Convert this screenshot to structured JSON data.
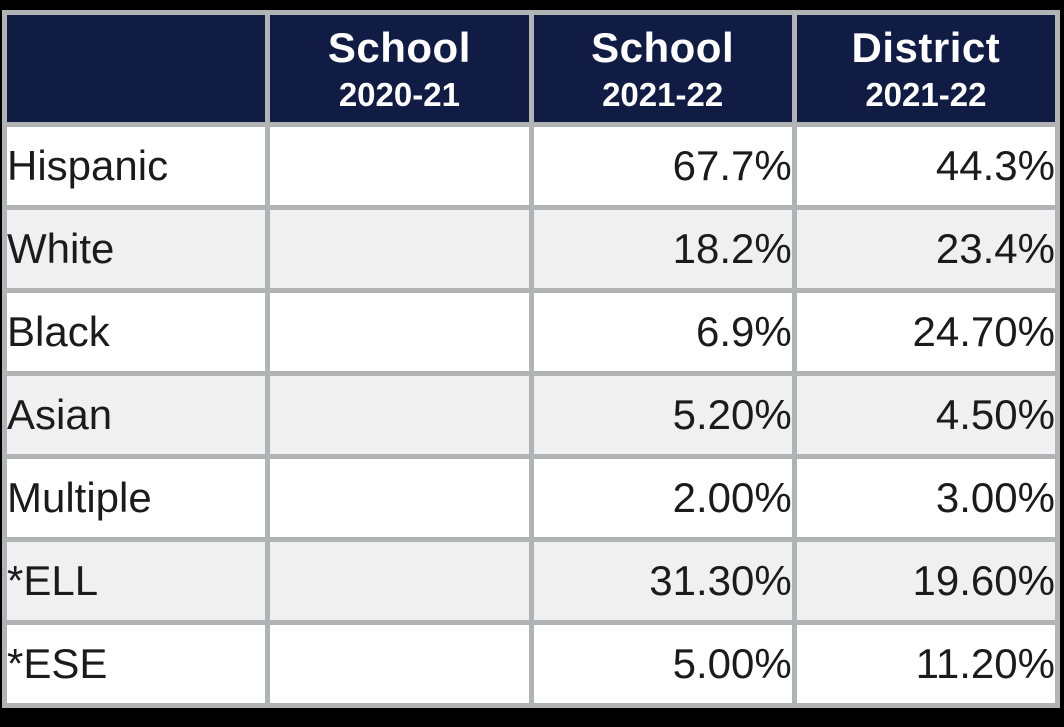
{
  "chart_data": {
    "type": "table",
    "title": "School demographics comparison table",
    "columns": [
      {
        "label": "",
        "sublabel": ""
      },
      {
        "label": "School",
        "sublabel": "2020-21"
      },
      {
        "label": "School",
        "sublabel": "2021-22"
      },
      {
        "label": "District",
        "sublabel": "2021-22"
      }
    ],
    "rows": [
      [
        "Hispanic",
        "",
        "67.7%",
        "44.3%"
      ],
      [
        "White",
        "",
        "18.2%",
        "23.4%"
      ],
      [
        "Black",
        "",
        "6.9%",
        "24.70%"
      ],
      [
        "Asian",
        "",
        "5.20%",
        "4.50%"
      ],
      [
        "Multiple",
        "",
        "2.00%",
        "3.00%"
      ],
      [
        "*ELL",
        "",
        "31.30%",
        "19.60%"
      ],
      [
        "*ESE",
        "",
        "5.00%",
        "11.20%"
      ]
    ],
    "layout": {
      "header_position": "top",
      "grid": true,
      "value_alignment": "right",
      "label_alignment": "left"
    },
    "colors": {
      "header_background": "#111c44",
      "header_text": "#ffffff",
      "cell_border": "#b1b3b5",
      "row_white": "#ffffff",
      "row_striped": "#f0f0f1",
      "outer_frame": "#000000",
      "body_text": "#1b1b1b"
    }
  }
}
